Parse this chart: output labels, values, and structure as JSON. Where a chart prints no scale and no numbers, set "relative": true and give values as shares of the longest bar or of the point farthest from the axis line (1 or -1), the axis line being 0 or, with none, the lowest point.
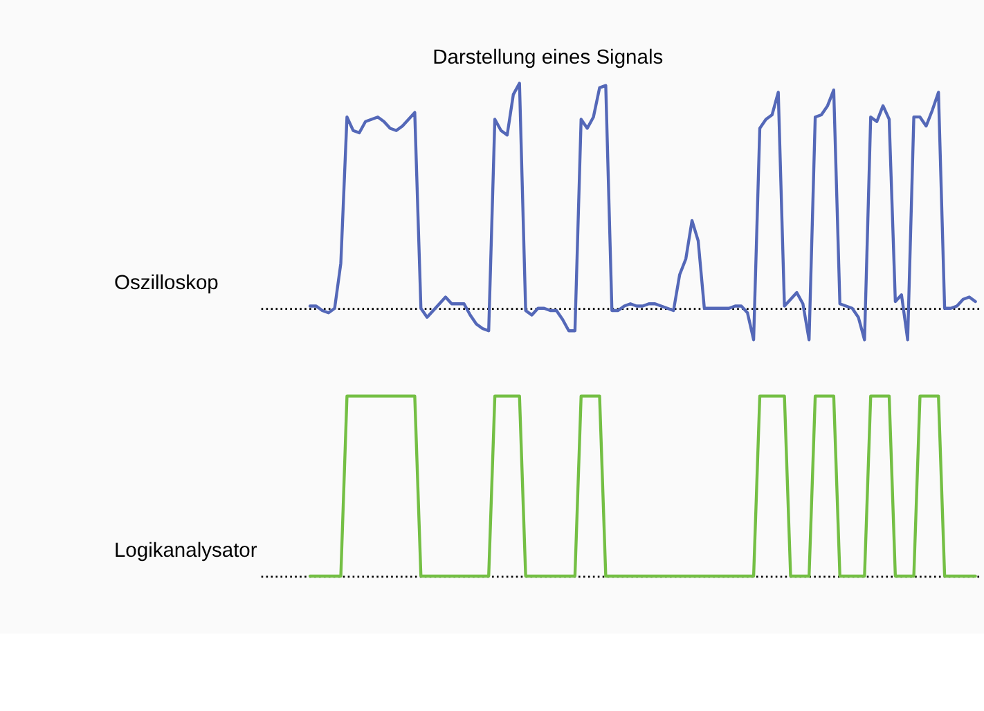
{
  "chart_data": [
    {
      "type": "line",
      "title": "Darstellung eines Signals",
      "relative": true,
      "tick_labels": false,
      "annotations": [
        "Oszilloskop"
      ],
      "ref_lines": [
        {
          "axis": "y",
          "value": 0,
          "line_style": "dotted",
          "color": "#000000"
        }
      ],
      "categories": [
        null,
        null,
        null,
        null,
        null,
        null,
        null,
        null,
        null,
        null,
        null,
        null,
        null,
        null,
        null,
        null,
        null,
        null,
        null,
        null,
        null,
        null,
        null,
        null,
        null,
        null,
        null,
        null,
        null,
        null,
        null,
        null,
        null,
        null,
        null,
        null,
        null,
        null,
        null,
        null,
        null,
        null,
        null,
        null,
        null,
        null,
        null,
        null,
        null,
        null,
        null,
        null,
        null,
        null,
        null,
        null,
        null,
        null,
        null,
        null,
        null,
        null,
        null,
        null,
        null,
        null,
        null,
        null,
        null,
        null,
        null,
        null,
        null,
        null,
        null,
        null,
        null,
        null,
        null,
        null,
        null,
        null,
        null,
        null,
        null,
        null,
        null,
        null,
        null,
        null,
        null,
        null,
        null,
        null,
        null,
        null,
        null,
        null,
        null,
        null,
        null,
        null,
        null,
        null,
        null,
        null,
        null,
        null,
        null
      ],
      "series": [
        {
          "color": "#5468b8",
          "line_style": "solid",
          "values": [
            0.01,
            0.01,
            -0.01,
            -0.02,
            0.0,
            0.2,
            0.85,
            0.79,
            0.78,
            0.83,
            0.84,
            0.85,
            0.83,
            0.8,
            0.79,
            0.81,
            0.84,
            0.87,
            0.0,
            -0.04,
            -0.01,
            0.02,
            0.05,
            0.02,
            0.02,
            0.02,
            -0.03,
            -0.07,
            -0.09,
            -0.1,
            0.84,
            0.79,
            0.77,
            0.95,
            1.0,
            -0.01,
            -0.03,
            0.0,
            0.0,
            -0.01,
            -0.01,
            -0.05,
            -0.1,
            -0.1,
            0.84,
            0.8,
            0.85,
            0.98,
            0.99,
            -0.01,
            -0.01,
            0.01,
            0.02,
            0.01,
            0.01,
            0.02,
            0.02,
            0.01,
            0.0,
            -0.01,
            0.15,
            0.22,
            0.39,
            0.3,
            0.0,
            0.0,
            0.0,
            0.0,
            0.0,
            0.01,
            0.01,
            -0.02,
            -0.14,
            0.8,
            0.84,
            0.86,
            0.96,
            0.01,
            0.04,
            0.07,
            0.02,
            -0.14,
            0.85,
            0.86,
            0.9,
            0.97,
            0.02,
            0.01,
            0.0,
            -0.04,
            -0.14,
            0.85,
            0.83,
            0.9,
            0.84,
            0.03,
            0.06,
            -0.14,
            0.85,
            0.85,
            0.81,
            0.88,
            0.96,
            0.0,
            0.0,
            0.01,
            0.04,
            0.05,
            0.03
          ]
        }
      ]
    },
    {
      "type": "line",
      "relative": true,
      "tick_labels": false,
      "annotations": [
        "Logikanalysator"
      ],
      "ref_lines": [
        {
          "axis": "y",
          "value": 0,
          "line_style": "dotted",
          "color": "#000000"
        }
      ],
      "categories": [
        null,
        null,
        null,
        null,
        null,
        null,
        null,
        null,
        null,
        null,
        null,
        null,
        null,
        null,
        null,
        null,
        null,
        null,
        null,
        null,
        null,
        null,
        null,
        null,
        null,
        null,
        null,
        null,
        null,
        null,
        null,
        null,
        null,
        null,
        null,
        null,
        null,
        null,
        null,
        null,
        null,
        null,
        null,
        null,
        null,
        null,
        null,
        null,
        null,
        null,
        null,
        null,
        null,
        null,
        null,
        null,
        null,
        null,
        null,
        null,
        null,
        null,
        null,
        null,
        null,
        null,
        null,
        null,
        null,
        null,
        null,
        null,
        null,
        null,
        null,
        null,
        null,
        null,
        null,
        null,
        null,
        null,
        null,
        null,
        null,
        null,
        null,
        null,
        null,
        null,
        null,
        null,
        null,
        null,
        null,
        null,
        null,
        null,
        null,
        null,
        null,
        null,
        null,
        null,
        null,
        null,
        null,
        null,
        null
      ],
      "series": [
        {
          "color": "#74bf44",
          "line_style": "solid",
          "values": [
            0,
            0,
            0,
            0,
            0,
            0,
            1,
            1,
            1,
            1,
            1,
            1,
            1,
            1,
            1,
            1,
            1,
            1,
            0,
            0,
            0,
            0,
            0,
            0,
            0,
            0,
            0,
            0,
            0,
            0,
            1,
            1,
            1,
            1,
            1,
            0,
            0,
            0,
            0,
            0,
            0,
            0,
            0,
            0,
            1,
            1,
            1,
            1,
            0,
            0,
            0,
            0,
            0,
            0,
            0,
            0,
            0,
            0,
            0,
            0,
            0,
            0,
            0,
            0,
            0,
            0,
            0,
            0,
            0,
            0,
            0,
            0,
            0,
            1,
            1,
            1,
            1,
            1,
            0,
            0,
            0,
            0,
            1,
            1,
            1,
            1,
            0,
            0,
            0,
            0,
            0,
            1,
            1,
            1,
            1,
            0,
            0,
            0,
            0,
            1,
            1,
            1,
            1,
            0,
            0,
            0,
            0,
            0,
            0
          ]
        }
      ]
    }
  ]
}
